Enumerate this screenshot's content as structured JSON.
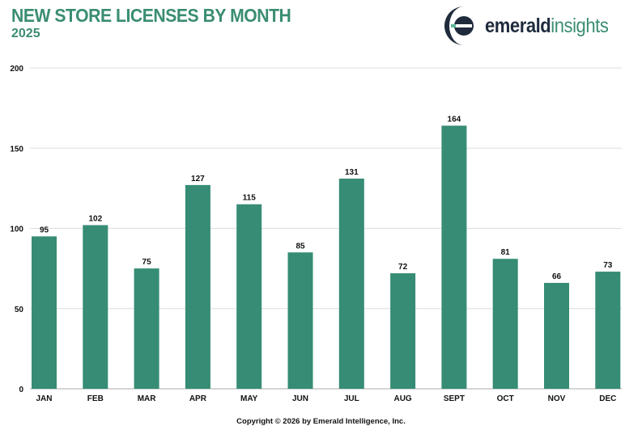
{
  "header": {
    "title": "NEW STORE LICENSES BY MONTH",
    "subtitle": "2025"
  },
  "logo": {
    "brand": "emerald",
    "brand_suffix": "insights"
  },
  "footer": {
    "copyright": "Copyright © 2026 by Emerald Intelligence, Inc."
  },
  "colors": {
    "bar": "#368c74",
    "title": "#3a8d72",
    "grid": "#dddddd",
    "logo_dark": "#1f2b3d"
  },
  "chart_data": {
    "type": "bar",
    "title": "NEW STORE LICENSES BY MONTH",
    "subtitle": "2025",
    "categories": [
      "JAN",
      "FEB",
      "MAR",
      "APR",
      "MAY",
      "JUN",
      "JUL",
      "AUG",
      "SEPT",
      "OCT",
      "NOV",
      "DEC"
    ],
    "values": [
      95,
      102,
      75,
      127,
      115,
      85,
      131,
      72,
      164,
      81,
      66,
      73
    ],
    "ylim": [
      0,
      200
    ],
    "yticks": [
      0,
      50,
      100,
      150,
      200
    ],
    "grid": true,
    "data_labels": true,
    "legend": "none"
  }
}
